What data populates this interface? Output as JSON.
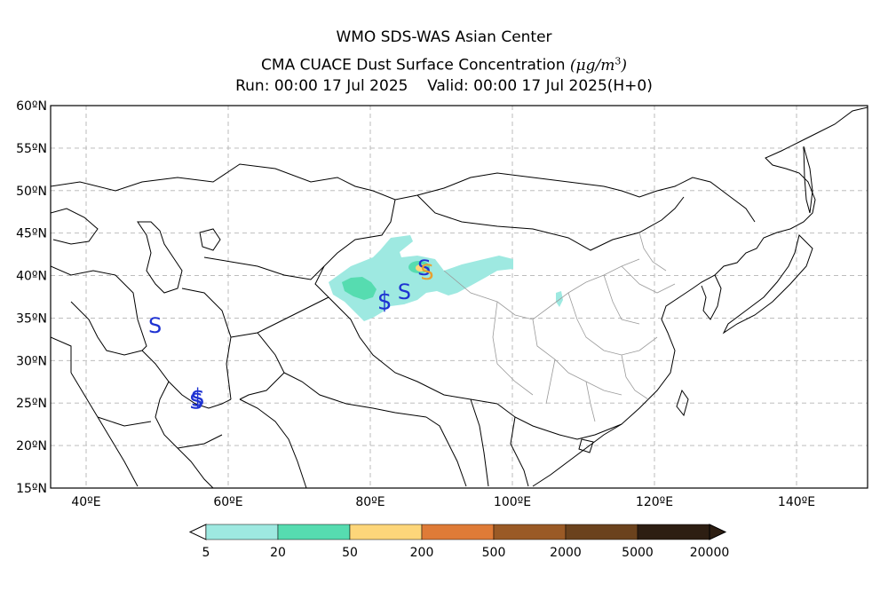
{
  "header": {
    "line1": "WMO SDS-WAS Asian Center",
    "line2": "CMA CUACE Dust Surface Concentration",
    "unit_prefix": "(",
    "unit_mu": "μg/m",
    "unit_exp": "3",
    "unit_suffix": ")",
    "line3": "Run: 00:00 17 Jul 2025    Valid: 00:00 17 Jul 2025(H+0)"
  },
  "map": {
    "lon_range": [
      35,
      150
    ],
    "lat_range": [
      15,
      60
    ],
    "lat_ticks": [
      "15ºN",
      "20ºN",
      "25ºN",
      "30ºN",
      "35ºN",
      "40ºN",
      "45ºN",
      "50ºN",
      "55ºN",
      "60ºN"
    ],
    "lon_ticks": [
      "40ºE",
      "60ºE",
      "80ºE",
      "100ºE",
      "120ºE",
      "140ºE"
    ],
    "grid": "dashed",
    "symbol_text": "S",
    "symbol_color": "#1e32d2",
    "symbols": [
      {
        "lon": 49.7,
        "lat": 34.2,
        "kind": "dust"
      },
      {
        "lon": 55.5,
        "lat": 25.3,
        "kind": "dust"
      },
      {
        "lon": 55.7,
        "lat": 25.6,
        "kind": "dust-strike"
      },
      {
        "lon": 82.0,
        "lat": 37.0,
        "kind": "dust-strike"
      },
      {
        "lon": 84.8,
        "lat": 38.2,
        "kind": "dust"
      },
      {
        "lon": 87.6,
        "lat": 41.0,
        "kind": "dust"
      },
      {
        "lon": 88.0,
        "lat": 40.5,
        "kind": "dust-orange"
      }
    ]
  },
  "colorbar": {
    "labels": [
      "5",
      "20",
      "50",
      "200",
      "500",
      "2000",
      "5000",
      "20000"
    ],
    "colors": [
      "#9ee9e1",
      "#56dcb0",
      "#fdd67a",
      "#df7b37",
      "#9a5a26",
      "#6b421d",
      "#2d1e12"
    ]
  }
}
